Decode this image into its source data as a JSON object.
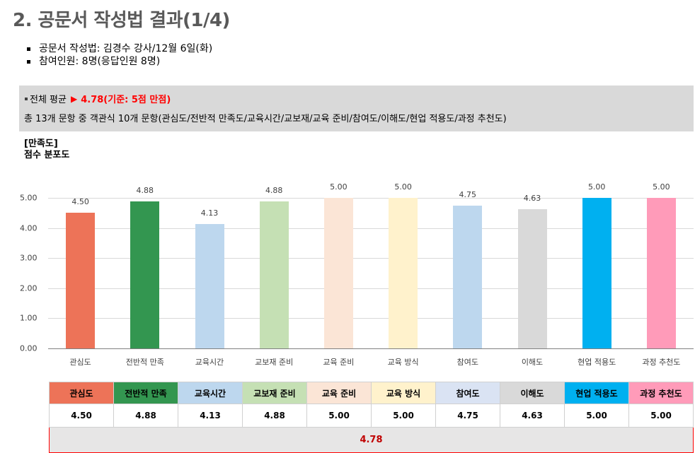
{
  "header": {
    "title": "2. 공문서 작성법 결과(1/4)"
  },
  "info": {
    "items": [
      "공문서 작성법: 김경수 강사/12월 6일(화)",
      "참여인원: 8명(응답인원 8명)"
    ]
  },
  "summary": {
    "label": "전체 평균",
    "arrow": "▶",
    "value": "4.78(기준: 5점 만점)",
    "description": "총 13개 문항 중 객관식 10개 문항(관심도/전반적 만족도/교육시간/교보재/교육 준비/참여도/이해도/현업 적용도/과정 추천도)"
  },
  "chart_heading": {
    "line1": "[만족도]",
    "line2": "점수 분포도"
  },
  "chart_data": {
    "type": "bar",
    "title": "점수 분포도",
    "xlabel": "",
    "ylabel": "",
    "ylim": [
      0,
      5
    ],
    "y_ticks": [
      "0.00",
      "1.00",
      "2.00",
      "3.00",
      "4.00",
      "5.00"
    ],
    "grid": true,
    "legend": "none",
    "categories": [
      "관심도",
      "전반적 만족",
      "교육시간",
      "교보재 준비",
      "교육 준비",
      "교육 방식",
      "참여도",
      "이해도",
      "현업 적용도",
      "과정 추천도"
    ],
    "values": [
      4.5,
      4.88,
      4.13,
      4.88,
      5.0,
      5.0,
      4.75,
      4.63,
      5.0,
      5.0
    ],
    "value_labels": [
      "4.50",
      "4.88",
      "4.13",
      "4.88",
      "5.00",
      "5.00",
      "4.75",
      "4.63",
      "5.00",
      "5.00"
    ],
    "colors": [
      "#ED7358",
      "#339650",
      "#BDD7EE",
      "#C5E0B4",
      "#FBE5D6",
      "#FFF2CC",
      "#BDD7EE",
      "#D9D9D9",
      "#00B0F0",
      "#FF9BB9"
    ]
  },
  "table": {
    "headers": [
      "관심도",
      "전반적 만족",
      "교육시간",
      "교보재 준비",
      "교육 준비",
      "교육 방식",
      "참여도",
      "이해도",
      "현업 적용도",
      "과정 추천도"
    ],
    "header_colors": [
      "#ED7358",
      "#339650",
      "#BDD7EE",
      "#C5E0B4",
      "#FBE5D6",
      "#FFF2CC",
      "#DAE3F3",
      "#D9D9D9",
      "#00B0F0",
      "#FF9BB9"
    ],
    "values": [
      "4.50",
      "4.88",
      "4.13",
      "4.88",
      "5.00",
      "5.00",
      "4.75",
      "4.63",
      "5.00",
      "5.00"
    ],
    "average": "4.78"
  }
}
